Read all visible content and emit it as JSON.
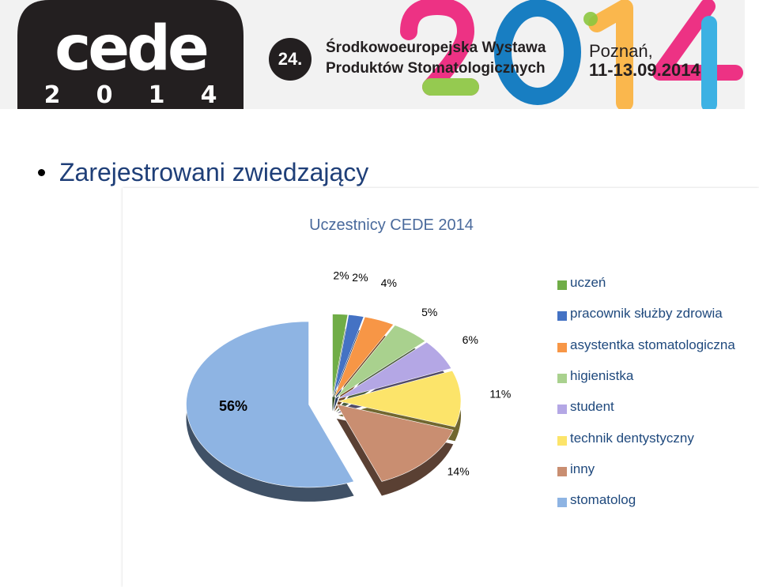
{
  "banner": {
    "logo_text": "cede",
    "logo_year_digits": [
      "2",
      "0",
      "1",
      "4"
    ],
    "expo_number": "24.",
    "expo_line1": "Środkowoeuropejska Wystawa",
    "expo_line2": "Produktów Stomatologicznych",
    "big_year": "2014",
    "place": "Poznań,",
    "dates": "11-13.09.2014"
  },
  "bullet": {
    "text": "Zarejestrowani zwiedzający"
  },
  "chart_data": {
    "type": "pie",
    "title": "Uczestnicy CEDE 2014",
    "labels": [
      "uczeń",
      "pracownik służby zdrowia",
      "asystentka stomatologiczna",
      "higienistka",
      "student",
      "technik dentystyczny",
      "inny",
      "stomatolog"
    ],
    "values": [
      2,
      2,
      4,
      5,
      6,
      11,
      14,
      56
    ],
    "value_labels": [
      "2%",
      "2%",
      "4%",
      "5%",
      "6%",
      "11%",
      "14%",
      "56%"
    ],
    "colors": [
      "#70ad47",
      "#4472c4",
      "#f79646",
      "#a9d18e",
      "#b4a7e5",
      "#fce46a",
      "#c98e71",
      "#8eb4e3"
    ],
    "exploded": true,
    "style": "3d",
    "legend_position": "right"
  }
}
